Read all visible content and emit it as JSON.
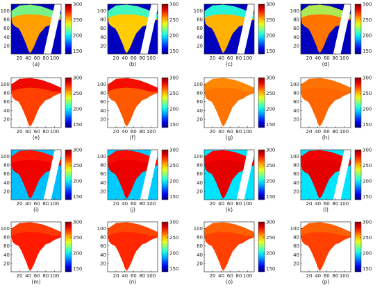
{
  "chart_data": {
    "type": "heatmap",
    "layout": {
      "rows": 4,
      "cols": 4
    },
    "colormap": "jet",
    "colorbar": {
      "min": 140,
      "max": 300,
      "ticks": [
        150,
        200,
        250,
        300
      ]
    },
    "axes": {
      "x_ticks": [
        20,
        40,
        60,
        80,
        100
      ],
      "y_ticks": [
        20,
        40,
        60,
        80,
        100
      ],
      "xlim": [
        1,
        115
      ],
      "ylim": [
        1,
        115
      ]
    },
    "panels": [
      {
        "label": "(a)",
        "style": "swath",
        "background": 150,
        "land": 255,
        "north": 215
      },
      {
        "label": "(b)",
        "style": "swath",
        "background": 150,
        "land": 248,
        "north": 205
      },
      {
        "label": "(c)",
        "style": "swath",
        "background": 150,
        "land": 252,
        "north": 200
      },
      {
        "label": "(d)",
        "style": "swath",
        "background": 150,
        "land": 262,
        "north": 225
      },
      {
        "label": "(e)",
        "style": "land",
        "land": 270,
        "north": 283
      },
      {
        "label": "(f)",
        "style": "land",
        "land": 266,
        "north": 282
      },
      {
        "label": "(g)",
        "style": "land",
        "land": 262,
        "north": 258
      },
      {
        "label": "(h)",
        "style": "land",
        "land": 264,
        "north": 262
      },
      {
        "label": "(i)",
        "style": "swath",
        "background": 190,
        "land": 282,
        "north": 276
      },
      {
        "label": "(j)",
        "style": "swath",
        "background": 192,
        "land": 283,
        "north": 278
      },
      {
        "label": "(k)",
        "style": "swath",
        "background": 196,
        "land": 284,
        "north": 280
      },
      {
        "label": "(l)",
        "style": "swath",
        "background": 196,
        "land": 284,
        "north": 282
      },
      {
        "label": "(m)",
        "style": "land",
        "land": 276,
        "north": 270
      },
      {
        "label": "(n)",
        "style": "land",
        "land": 274,
        "north": 268
      },
      {
        "label": "(o)",
        "style": "land",
        "land": 270,
        "north": 264
      },
      {
        "label": "(p)",
        "style": "land",
        "land": 270,
        "north": 264
      }
    ]
  }
}
